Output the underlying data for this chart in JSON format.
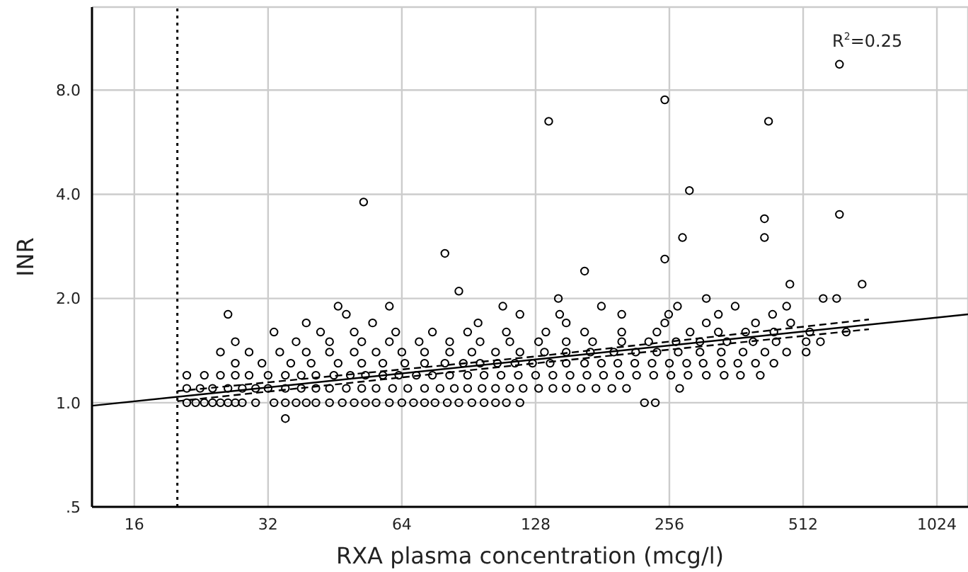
{
  "chart_data": {
    "type": "scatter",
    "xlabel": "RXA plasma concentration (mcg/l)",
    "ylabel": "INR",
    "log": "xy",
    "grid": true,
    "marker": "circle",
    "xlim": [
      12.85,
      1203
    ],
    "xticks": [
      16,
      32,
      64,
      128,
      256,
      512,
      1024
    ],
    "ylim": [
      0.5,
      13.9
    ],
    "yticks": [
      {
        "value": 0.5,
        "label": ".5"
      },
      {
        "value": 1,
        "label": "1.0"
      },
      {
        "value": 2,
        "label": "2.0"
      },
      {
        "value": 4,
        "label": "4.0"
      },
      {
        "value": 8,
        "label": "8.0"
      }
    ],
    "ref_lines": [
      {
        "axis": "x",
        "value": 20,
        "color": "#000000",
        "line_style": "dotted"
      }
    ],
    "annotations": [
      "R$^{2}$=0.25"
    ],
    "series": [
      {
        "color": "#000000",
        "x": [
          21,
          22,
          23,
          24,
          25,
          26,
          27,
          28,
          30,
          33,
          35,
          37,
          39,
          41,
          44,
          47,
          50,
          53,
          56,
          60,
          64,
          68,
          72,
          76,
          81,
          86,
          92,
          98,
          104,
          110,
          118,
          225,
          238,
          21,
          22.5,
          24,
          26,
          28,
          30,
          32,
          35,
          38,
          41,
          44,
          48,
          52,
          56,
          61,
          66,
          72,
          78,
          84,
          90,
          97,
          104,
          112,
          120,
          130,
          140,
          150,
          162,
          175,
          190,
          205,
          270,
          21,
          23,
          25,
          27,
          29,
          32,
          35,
          38,
          41,
          45,
          49,
          53,
          58,
          63,
          69,
          75,
          82,
          90,
          98,
          107,
          117,
          128,
          140,
          153,
          167,
          182,
          198,
          216,
          236,
          258,
          282,
          310,
          340,
          370,
          410,
          27,
          31,
          36,
          40,
          46,
          52,
          58,
          65,
          72,
          80,
          88,
          96,
          105,
          115,
          126,
          138,
          150,
          165,
          180,
          196,
          214,
          234,
          256,
          280,
          305,
          335,
          365,
          400,
          440,
          25,
          29,
          34,
          39,
          44,
          50,
          56,
          64,
          72,
          82,
          92,
          104,
          118,
          134,
          150,
          170,
          192,
          215,
          240,
          268,
          300,
          335,
          375,
          420,
          470,
          520,
          27,
          37,
          44,
          52,
          60,
          70,
          82,
          96,
          112,
          130,
          150,
          172,
          200,
          230,
          265,
          300,
          345,
          395,
          445,
          520,
          560,
          33,
          42,
          50,
          62,
          75,
          90,
          110,
          135,
          165,
          200,
          240,
          285,
          330,
          380,
          440,
          530,
          640,
          39,
          55,
          95,
          150,
          250,
          310,
          400,
          480,
          26,
          48,
          118,
          145,
          200,
          255,
          330,
          437,
          46,
          60,
          108,
          180,
          267,
          360,
          470,
          144,
          310,
          568,
          609,
          86,
          478,
          695,
          165,
          80,
          250,
          274,
          419,
          419,
          618,
          284,
          52.5,
          137,
          250,
          428,
          618,
          35
        ],
        "values": [
          1.0,
          1.0,
          1.0,
          1.0,
          1.0,
          1.0,
          1.0,
          1.0,
          1.0,
          1.0,
          1.0,
          1.0,
          1.0,
          1.0,
          1.0,
          1.0,
          1.0,
          1.0,
          1.0,
          1.0,
          1.0,
          1.0,
          1.0,
          1.0,
          1.0,
          1.0,
          1.0,
          1.0,
          1.0,
          1.0,
          1.0,
          1.0,
          1.0,
          1.1,
          1.1,
          1.1,
          1.1,
          1.1,
          1.1,
          1.1,
          1.1,
          1.1,
          1.1,
          1.1,
          1.1,
          1.1,
          1.1,
          1.1,
          1.1,
          1.1,
          1.1,
          1.1,
          1.1,
          1.1,
          1.1,
          1.1,
          1.1,
          1.1,
          1.1,
          1.1,
          1.1,
          1.1,
          1.1,
          1.1,
          1.1,
          1.2,
          1.2,
          1.2,
          1.2,
          1.2,
          1.2,
          1.2,
          1.2,
          1.2,
          1.2,
          1.2,
          1.2,
          1.2,
          1.2,
          1.2,
          1.2,
          1.2,
          1.2,
          1.2,
          1.2,
          1.2,
          1.2,
          1.2,
          1.2,
          1.2,
          1.2,
          1.2,
          1.2,
          1.2,
          1.2,
          1.2,
          1.2,
          1.2,
          1.2,
          1.2,
          1.3,
          1.3,
          1.3,
          1.3,
          1.3,
          1.3,
          1.3,
          1.3,
          1.3,
          1.3,
          1.3,
          1.3,
          1.3,
          1.3,
          1.3,
          1.3,
          1.3,
          1.3,
          1.3,
          1.3,
          1.3,
          1.3,
          1.3,
          1.3,
          1.3,
          1.3,
          1.3,
          1.3,
          1.3,
          1.4,
          1.4,
          1.4,
          1.4,
          1.4,
          1.4,
          1.4,
          1.4,
          1.4,
          1.4,
          1.4,
          1.4,
          1.4,
          1.4,
          1.4,
          1.4,
          1.4,
          1.4,
          1.4,
          1.4,
          1.4,
          1.4,
          1.4,
          1.4,
          1.4,
          1.4,
          1.5,
          1.5,
          1.5,
          1.5,
          1.5,
          1.5,
          1.5,
          1.5,
          1.5,
          1.5,
          1.5,
          1.5,
          1.5,
          1.5,
          1.5,
          1.5,
          1.5,
          1.5,
          1.5,
          1.5,
          1.5,
          1.6,
          1.6,
          1.6,
          1.6,
          1.6,
          1.6,
          1.6,
          1.6,
          1.6,
          1.6,
          1.6,
          1.6,
          1.6,
          1.6,
          1.6,
          1.6,
          1.6,
          1.7,
          1.7,
          1.7,
          1.7,
          1.7,
          1.7,
          1.7,
          1.7,
          1.8,
          1.8,
          1.8,
          1.8,
          1.8,
          1.8,
          1.8,
          1.8,
          1.9,
          1.9,
          1.9,
          1.9,
          1.9,
          1.9,
          1.9,
          2.0,
          2.0,
          2.0,
          2.0,
          2.1,
          2.2,
          2.2,
          2.4,
          2.7,
          2.6,
          3.0,
          3.0,
          3.4,
          3.5,
          4.1,
          3.8,
          6.5,
          7.5,
          6.5,
          9.5,
          0.9
        ]
      },
      {
        "type": "line",
        "marker": "none",
        "color": "#000000",
        "line_style": "solid",
        "x": [
          12.85,
          1203
        ],
        "values": [
          0.98,
          1.8
        ]
      },
      {
        "type": "line",
        "marker": "none",
        "color": "#000000",
        "line_style": "dashed",
        "x": [
          20,
          128,
          720
        ],
        "values": [
          1.08,
          1.36,
          1.74
        ]
      },
      {
        "type": "line",
        "marker": "none",
        "color": "#000000",
        "line_style": "dashed",
        "x": [
          20,
          128,
          720
        ],
        "values": [
          1.01,
          1.3,
          1.63
        ]
      }
    ]
  }
}
